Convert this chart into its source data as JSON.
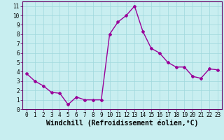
{
  "x": [
    0,
    1,
    2,
    3,
    4,
    5,
    6,
    7,
    8,
    9,
    10,
    11,
    12,
    13,
    14,
    15,
    16,
    17,
    18,
    19,
    20,
    21,
    22,
    23
  ],
  "y": [
    3.8,
    3.0,
    2.5,
    1.8,
    1.7,
    0.5,
    1.3,
    1.0,
    1.0,
    1.0,
    8.0,
    9.3,
    10.0,
    11.0,
    8.3,
    6.5,
    6.0,
    5.0,
    4.5,
    4.5,
    3.5,
    3.3,
    4.3,
    4.2
  ],
  "line_color": "#990099",
  "marker": "D",
  "marker_size": 2,
  "bg_color": "#c8eef0",
  "grid_color": "#9fd8dc",
  "xlabel": "Windchill (Refroidissement éolien,°C)",
  "xlim": [
    -0.5,
    23.5
  ],
  "ylim": [
    0,
    11.5
  ],
  "yticks": [
    0,
    1,
    2,
    3,
    4,
    5,
    6,
    7,
    8,
    9,
    10,
    11
  ],
  "xticks": [
    0,
    1,
    2,
    3,
    4,
    5,
    6,
    7,
    8,
    9,
    10,
    11,
    12,
    13,
    14,
    15,
    16,
    17,
    18,
    19,
    20,
    21,
    22,
    23
  ],
  "tick_label_fontsize": 5.5,
  "xlabel_fontsize": 7.0,
  "spine_color": "#660066",
  "line_width": 1.0
}
